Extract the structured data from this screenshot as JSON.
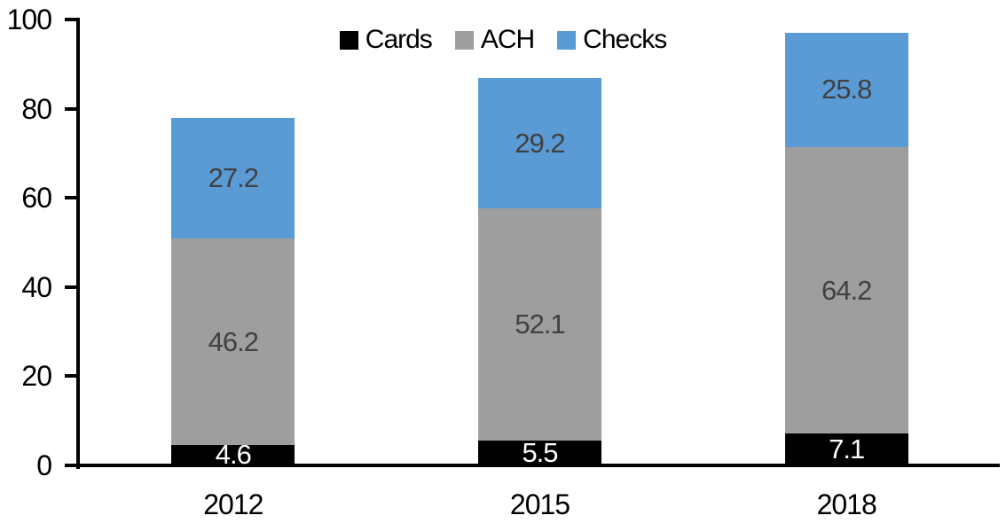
{
  "chart_data": {
    "type": "bar",
    "stacked": true,
    "title": "",
    "xlabel": "",
    "ylabel": "",
    "categories": [
      "2012",
      "2015",
      "2018"
    ],
    "series": [
      {
        "name": "Cards",
        "color": "#000000",
        "label_color": "#FFFFFF",
        "values": [
          4.6,
          5.5,
          7.1
        ]
      },
      {
        "name": "ACH",
        "color": "#9E9E9E",
        "label_color": "#404040",
        "values": [
          46.2,
          52.1,
          64.2
        ]
      },
      {
        "name": "Checks",
        "color": "#5B9BD5",
        "label_color": "#404040",
        "values": [
          27.2,
          29.2,
          25.8
        ]
      }
    ],
    "ylim": [
      0,
      100
    ],
    "yticks": [
      0,
      20,
      40,
      60,
      80,
      100
    ],
    "grid": false,
    "legend_position": "top-center",
    "axis_color": "#000000",
    "background_color": "#FFFFFF"
  }
}
